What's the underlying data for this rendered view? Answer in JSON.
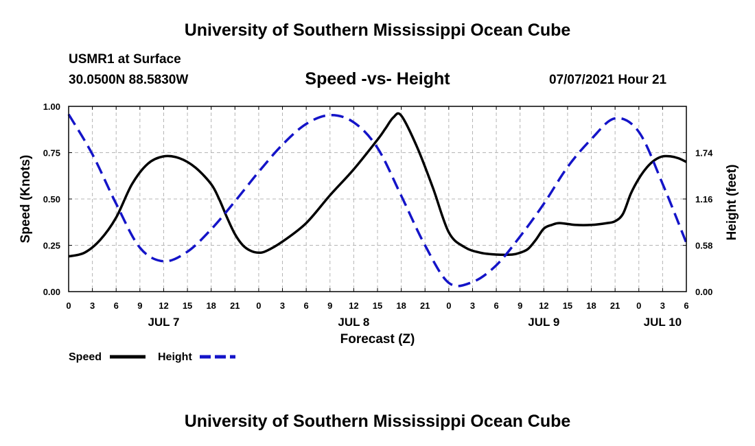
{
  "header": {
    "title": "University of Southern Mississippi Ocean Cube",
    "station": "USMR1 at Surface",
    "coordinates": "30.0500N  88.5830W",
    "datetime": "07/07/2021 Hour 21"
  },
  "footer": {
    "title": "University of Southern Mississippi Ocean Cube"
  },
  "chart_data": {
    "type": "line",
    "title": "Speed -vs- Height",
    "xlabel": "Forecast (Z)",
    "ylabel": "Speed (Knots)",
    "y2label": "Height (feet)",
    "x_unit": "hours from JUL 7 00Z",
    "xlim": [
      0,
      78
    ],
    "ylim": [
      0,
      1.0
    ],
    "y2lim": [
      0,
      2.32
    ],
    "grid": true,
    "x_ticks": [
      {
        "x": 0,
        "label": "0"
      },
      {
        "x": 3,
        "label": "3"
      },
      {
        "x": 6,
        "label": "6"
      },
      {
        "x": 9,
        "label": "9"
      },
      {
        "x": 12,
        "label": "12"
      },
      {
        "x": 15,
        "label": "15"
      },
      {
        "x": 18,
        "label": "18"
      },
      {
        "x": 21,
        "label": "21"
      },
      {
        "x": 24,
        "label": "0"
      },
      {
        "x": 27,
        "label": "3"
      },
      {
        "x": 30,
        "label": "6"
      },
      {
        "x": 33,
        "label": "9"
      },
      {
        "x": 36,
        "label": "12"
      },
      {
        "x": 39,
        "label": "15"
      },
      {
        "x": 42,
        "label": "18"
      },
      {
        "x": 45,
        "label": "21"
      },
      {
        "x": 48,
        "label": "0"
      },
      {
        "x": 51,
        "label": "3"
      },
      {
        "x": 54,
        "label": "6"
      },
      {
        "x": 57,
        "label": "9"
      },
      {
        "x": 60,
        "label": "12"
      },
      {
        "x": 63,
        "label": "15"
      },
      {
        "x": 66,
        "label": "18"
      },
      {
        "x": 69,
        "label": "21"
      },
      {
        "x": 72,
        "label": "0"
      },
      {
        "x": 75,
        "label": "3"
      },
      {
        "x": 78,
        "label": "6"
      }
    ],
    "date_labels": [
      {
        "x": 12,
        "label": "JUL 7"
      },
      {
        "x": 36,
        "label": "JUL 8"
      },
      {
        "x": 60,
        "label": "JUL 9"
      },
      {
        "x": 75,
        "label": "JUL 10"
      }
    ],
    "y_ticks": [
      {
        "value": 0.0,
        "label": "0.00"
      },
      {
        "value": 0.25,
        "label": "0.25"
      },
      {
        "value": 0.5,
        "label": "0.50"
      },
      {
        "value": 0.75,
        "label": "0.75"
      },
      {
        "value": 1.0,
        "label": "1.00"
      }
    ],
    "y2_ticks": [
      {
        "value": 0.0,
        "label": "0.00"
      },
      {
        "value": 0.58,
        "label": "0.58"
      },
      {
        "value": 1.16,
        "label": "1.16"
      },
      {
        "value": 1.74,
        "label": "1.74"
      }
    ],
    "series": [
      {
        "name": "Speed",
        "axis": "left",
        "color": "#000000",
        "style": "solid",
        "x": [
          0,
          2,
          4,
          6,
          8,
          10,
          12,
          14,
          16,
          18,
          19,
          20,
          21,
          22,
          23,
          24,
          25,
          27,
          30,
          33,
          36,
          39,
          40,
          41,
          42,
          44,
          46,
          48,
          50,
          52,
          54,
          56,
          57,
          58,
          59,
          60,
          61,
          62,
          64,
          66,
          68,
          69,
          70,
          71,
          72,
          73,
          74,
          75,
          76,
          77,
          78
        ],
        "y": [
          0.19,
          0.21,
          0.28,
          0.4,
          0.58,
          0.69,
          0.73,
          0.72,
          0.67,
          0.58,
          0.5,
          0.4,
          0.31,
          0.25,
          0.22,
          0.21,
          0.22,
          0.27,
          0.37,
          0.52,
          0.66,
          0.82,
          0.88,
          0.94,
          0.95,
          0.78,
          0.56,
          0.32,
          0.24,
          0.21,
          0.2,
          0.2,
          0.21,
          0.23,
          0.28,
          0.34,
          0.36,
          0.37,
          0.36,
          0.36,
          0.37,
          0.38,
          0.42,
          0.53,
          0.61,
          0.67,
          0.71,
          0.73,
          0.73,
          0.72,
          0.7
        ]
      },
      {
        "name": "Height",
        "axis": "right",
        "color": "#1414c8",
        "style": "dashed",
        "x": [
          0,
          3,
          6,
          9,
          12,
          15,
          18,
          21,
          24,
          27,
          30,
          33,
          36,
          39,
          42,
          45,
          48,
          51,
          54,
          57,
          60,
          63,
          66,
          69,
          72,
          75,
          78
        ],
        "y": [
          2.22,
          1.72,
          1.1,
          0.55,
          0.38,
          0.5,
          0.78,
          1.13,
          1.5,
          1.84,
          2.1,
          2.21,
          2.12,
          1.8,
          1.2,
          0.58,
          0.11,
          0.12,
          0.33,
          0.69,
          1.1,
          1.56,
          1.91,
          2.17,
          2.0,
          1.35,
          0.61
        ]
      }
    ],
    "legend": {
      "position": "bottom-left",
      "entries": [
        {
          "label": "Speed",
          "color": "#000000",
          "style": "solid"
        },
        {
          "label": "Height",
          "color": "#1414c8",
          "style": "dashed"
        }
      ]
    }
  }
}
